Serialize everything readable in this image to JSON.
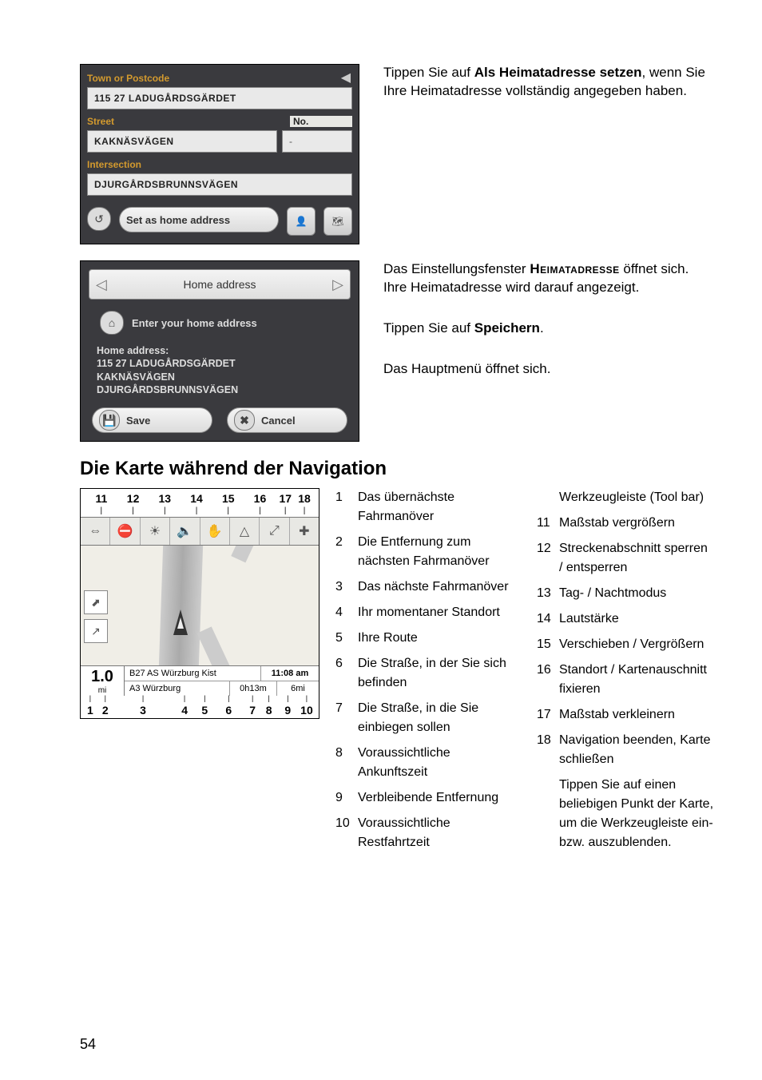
{
  "panel1": {
    "label_town": "Town or Postcode",
    "town": "115 27 LADUGÅRDSGÄRDET",
    "label_street": "Street",
    "label_no": "No.",
    "street": "KAKNÄSVÄGEN",
    "no": "-",
    "label_intersection": "Intersection",
    "intersection": "DJURGÅRDSBRUNNSVÄGEN",
    "set_home": "Set as home address"
  },
  "text_right1": {
    "pre": "Tippen Sie auf ",
    "bold": "Als Heimatadresse setzen",
    "post": ", wenn Sie Ihre Heimatadresse vollständig angegeben haben."
  },
  "panel2": {
    "title": "Home address",
    "enter": "Enter your home address",
    "hd": "Home address:",
    "l1": "115 27 LADUGÅRDSGÄRDET",
    "l2": "KAKNÄSVÄGEN",
    "l3": "DJURGÅRDSBRUNNSVÄGEN",
    "save": "Save",
    "cancel": "Cancel"
  },
  "text_right2": {
    "p1a": "Das Einstellungsfenster ",
    "p1b": "Heimatadresse",
    "p1c": " öffnet sich. Ihre Heimatadresse wird darauf angezeigt.",
    "p2a": "Tippen Sie auf ",
    "p2b": "Speichern",
    "p2c": ".",
    "p3": "Das Hauptmenü öffnet sich."
  },
  "heading": "Die Karte während der Navigation",
  "map": {
    "top": [
      "11",
      "12",
      "13",
      "14",
      "15",
      "16",
      "17",
      "18"
    ],
    "dist": "1.0",
    "dist_unit": "mi",
    "eta": "11:08 am",
    "rem_time": "0h13m",
    "rem_dist": "6mi",
    "road1": "B27 AS Würzburg Kist",
    "road2": "A3 Würzburg",
    "bottom": [
      "1",
      "2",
      "3",
      "4",
      "5",
      "6",
      "7",
      "8",
      "9",
      "10"
    ]
  },
  "legend_left": [
    {
      "n": "1",
      "t": "Das übernächste Fahrmanöver"
    },
    {
      "n": "2",
      "t": "Die Entfernung zum nächsten Fahrmanöver"
    },
    {
      "n": "3",
      "t": "Das nächste Fahrmanöver"
    },
    {
      "n": "4",
      "t": "Ihr momentaner Standort"
    },
    {
      "n": "5",
      "t": "Ihre Route"
    },
    {
      "n": "6",
      "t": "Die Straße, in der Sie sich befinden"
    },
    {
      "n": "7",
      "t": "Die Straße, in die Sie einbiegen sollen"
    },
    {
      "n": "8",
      "t": "Voraussichtliche Ankunftszeit"
    },
    {
      "n": "9",
      "t": "Verbleibende Entfernung"
    },
    {
      "n": "10",
      "t": "Voraussichtliche Restfahrtzeit"
    }
  ],
  "legend_right_header": "Werkzeugleiste (Tool bar)",
  "legend_right": [
    {
      "n": "11",
      "t": "Maßstab vergrößern"
    },
    {
      "n": "12",
      "t": "Streckenabschnitt sperren / entsperren"
    },
    {
      "n": "13",
      "t": "Tag- / Nachtmodus"
    },
    {
      "n": "14",
      "t": "Lautstärke"
    },
    {
      "n": "15",
      "t": "Verschieben / Vergrößern"
    },
    {
      "n": "16",
      "t": "Standort / Kartenauschnitt fixieren"
    },
    {
      "n": "17",
      "t": "Maßstab verkleinern"
    },
    {
      "n": "18",
      "t": "Navigation beenden, Karte schließen"
    }
  ],
  "legend_tip": "Tippen Sie auf einen beliebigen Punkt der Karte, um die Werkzeugleiste ein- bzw. auszublenden.",
  "page_number": "54"
}
